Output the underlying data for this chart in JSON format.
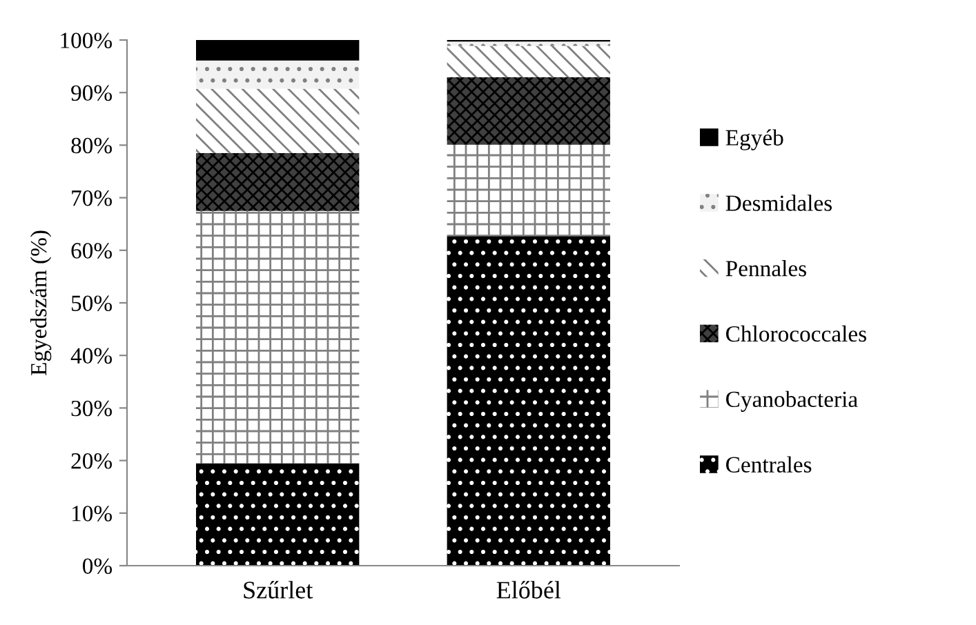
{
  "chart_data": {
    "type": "bar",
    "stacked": true,
    "ylabel": "Egyedszám (%)",
    "categories": [
      "Szűrlet",
      "Előbél"
    ],
    "ylim": [
      0,
      100
    ],
    "yticks": [
      {
        "value": 0,
        "label": "0%"
      },
      {
        "value": 10,
        "label": "10%"
      },
      {
        "value": 20,
        "label": "20%"
      },
      {
        "value": 30,
        "label": "30%"
      },
      {
        "value": 40,
        "label": "40%"
      },
      {
        "value": 50,
        "label": "50%"
      },
      {
        "value": 60,
        "label": "60%"
      },
      {
        "value": 70,
        "label": "70%"
      },
      {
        "value": 80,
        "label": "80%"
      },
      {
        "value": 90,
        "label": "90%"
      },
      {
        "value": 100,
        "label": "100%"
      }
    ],
    "grid": false,
    "legend": "right",
    "series": [
      {
        "name": "Centrales",
        "color": "#000000",
        "values": [
          19.5,
          62.7
        ]
      },
      {
        "name": "Cyanobacteria",
        "color": "#ffffff",
        "values": [
          48.0,
          17.4
        ]
      },
      {
        "name": "Chlorococcales",
        "color": "#404040",
        "values": [
          11.0,
          12.8
        ]
      },
      {
        "name": "Pennales",
        "color": "#ffffff",
        "values": [
          12.2,
          6.0
        ]
      },
      {
        "name": "Desmidales",
        "color": "#f2f2f2",
        "values": [
          5.4,
          0.8
        ]
      },
      {
        "name": "Egyéb",
        "color": "#000000",
        "values": [
          3.9,
          0.3
        ]
      }
    ]
  }
}
